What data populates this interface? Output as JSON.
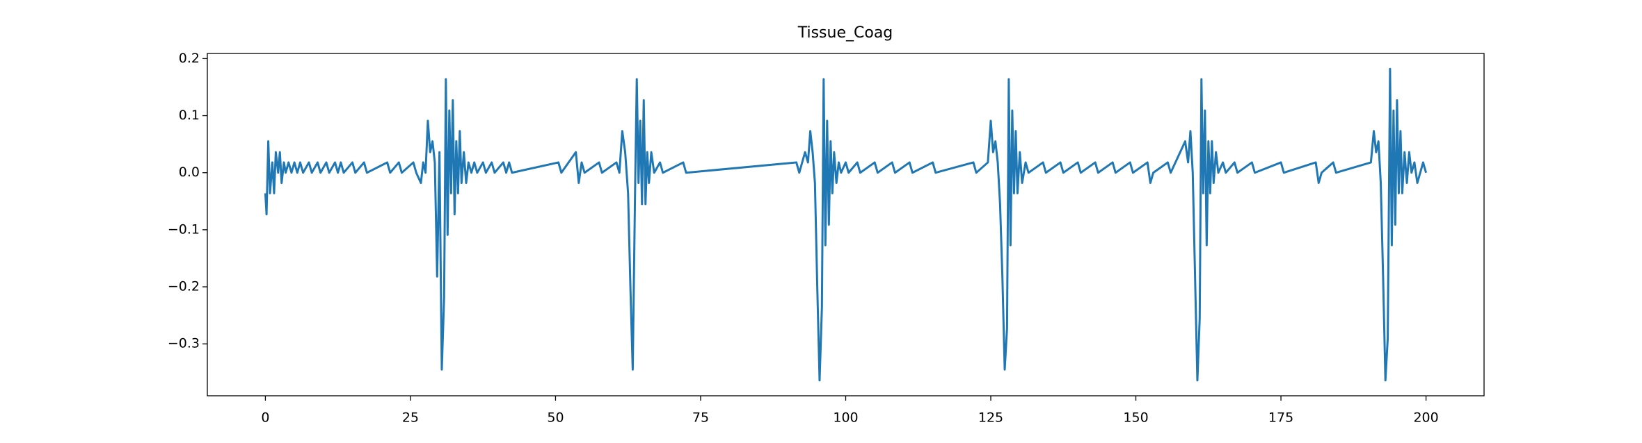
{
  "chart_data": {
    "type": "line",
    "title": "Tissue_Coag",
    "color": "#1f77b4",
    "grid": false,
    "xlim": [
      -10,
      210
    ],
    "ylim": [
      -0.391,
      0.209
    ],
    "xticks": [
      0,
      25,
      50,
      75,
      100,
      125,
      150,
      175,
      200
    ],
    "yticks": [
      {
        "value": -0.3,
        "label": "−0.3"
      },
      {
        "value": -0.2,
        "label": "−0.2"
      },
      {
        "value": -0.1,
        "label": "−0.1"
      },
      {
        "value": 0,
        "label": "0.0"
      },
      {
        "value": 0.1,
        "label": "0.1"
      },
      {
        "value": 0.2,
        "label": "0.2"
      }
    ],
    "x": [
      0,
      0.2,
      0.5,
      0.8,
      1.2,
      1.5,
      1.8,
      2.2,
      2.5,
      2.8,
      3.2,
      3.5,
      4,
      4.5,
      5,
      5.5,
      6,
      6.5,
      7.5,
      8,
      9,
      9.5,
      10.5,
      11,
      12,
      12.5,
      13,
      13.5,
      15,
      15.5,
      17,
      17.5,
      21,
      21.5,
      23,
      23.5,
      25.5,
      26,
      26.8,
      27.2,
      27.6,
      28,
      28.4,
      28.8,
      29.2,
      29.6,
      30,
      30.4,
      30.8,
      31.1,
      31.4,
      31.7,
      32,
      32.3,
      32.6,
      32.9,
      33.2,
      33.5,
      33.8,
      34.2,
      34.6,
      35,
      35.5,
      36,
      36.5,
      37.5,
      38,
      39,
      39.5,
      41,
      41.5,
      42,
      42.5,
      50.5,
      51,
      53.5,
      54,
      54.5,
      55,
      57.5,
      58,
      60.5,
      61,
      61.5,
      62,
      62.5,
      62.9,
      63.3,
      63.7,
      64,
      64.3,
      64.6,
      64.9,
      65.2,
      65.5,
      65.8,
      66.1,
      66.5,
      67,
      68,
      68.5,
      72,
      72.5,
      91.5,
      92,
      93,
      93.5,
      93.9,
      94.3,
      94.7,
      95.1,
      95.5,
      95.9,
      96.2,
      96.5,
      96.8,
      97.1,
      97.4,
      97.7,
      98,
      98.4,
      98.8,
      99.2,
      100,
      100.5,
      102,
      102.5,
      105,
      105.5,
      108,
      108.5,
      111,
      111.5,
      115,
      115.5,
      122,
      122.5,
      124.5,
      125,
      125.4,
      125.8,
      126.2,
      126.6,
      127,
      127.4,
      127.8,
      128.1,
      128.4,
      128.7,
      129,
      129.3,
      129.6,
      130,
      130.4,
      131,
      131.5,
      134,
      134.5,
      137,
      137.5,
      140,
      140.5,
      143,
      143.5,
      146,
      146.5,
      149,
      149.5,
      152,
      152.5,
      153,
      155.5,
      156,
      158.5,
      159,
      159.4,
      159.8,
      160.2,
      160.6,
      161,
      161.3,
      161.6,
      161.9,
      162.2,
      162.5,
      162.8,
      163.1,
      163.4,
      163.8,
      164.2,
      165,
      165.5,
      167,
      167.5,
      170,
      170.5,
      175,
      175.5,
      181,
      181.5,
      182,
      184,
      184.5,
      190.5,
      191,
      191.4,
      191.8,
      192.2,
      192.6,
      193,
      193.4,
      193.8,
      194.1,
      194.4,
      194.7,
      195,
      195.3,
      195.6,
      195.9,
      196.3,
      196.7,
      197.1,
      197.5,
      198,
      198.5,
      199,
      199.5,
      200
    ],
    "values": [
      -0.036,
      -0.073,
      0.055,
      -0.036,
      0.018,
      -0.036,
      0.036,
      0,
      0.036,
      -0.018,
      0.018,
      0,
      0.018,
      0,
      0.018,
      0,
      0.018,
      0,
      0.018,
      0,
      0.018,
      0,
      0.018,
      0,
      0.018,
      0,
      0.018,
      0,
      0.018,
      0,
      0.018,
      0,
      0.018,
      0,
      0.018,
      0,
      0.018,
      0,
      -0.018,
      0.018,
      0,
      0.091,
      0.036,
      0.055,
      0.018,
      -0.182,
      0.036,
      -0.345,
      -0.218,
      0.164,
      -0.109,
      0.109,
      -0.036,
      0.127,
      -0.073,
      0.055,
      -0.036,
      0.073,
      -0.018,
      0.036,
      -0.018,
      0.018,
      0,
      0.018,
      0,
      0.018,
      0,
      0.018,
      0,
      0.018,
      0,
      0.018,
      0,
      0.018,
      0,
      0.036,
      -0.018,
      0.018,
      0,
      0.018,
      0,
      0.018,
      0,
      0.073,
      0.036,
      -0.036,
      -0.2,
      -0.345,
      -0.036,
      0.164,
      -0.018,
      0.091,
      -0.055,
      0.127,
      -0.055,
      0.036,
      -0.018,
      0.036,
      0,
      0.018,
      0,
      0.018,
      0,
      0.018,
      0,
      0.036,
      0.018,
      0.073,
      0.036,
      -0.018,
      -0.2,
      -0.364,
      -0.236,
      0.164,
      -0.127,
      0.091,
      -0.091,
      0.055,
      -0.036,
      0.036,
      -0.018,
      0.018,
      0,
      0.018,
      0,
      0.018,
      0,
      0.018,
      0,
      0.018,
      0,
      0.018,
      0,
      0.018,
      0,
      0.018,
      0,
      0.018,
      0.091,
      0.036,
      0.055,
      0.018,
      -0.055,
      -0.182,
      -0.345,
      -0.273,
      0.164,
      -0.127,
      0.109,
      -0.036,
      0.073,
      -0.036,
      0.036,
      -0.018,
      0.018,
      0,
      0.018,
      0,
      0.018,
      0,
      0.018,
      0,
      0.018,
      0,
      0.018,
      0,
      0.018,
      0,
      0.018,
      -0.018,
      0,
      0.018,
      0,
      0.055,
      0.018,
      0.073,
      0,
      -0.182,
      -0.364,
      -0.255,
      0.164,
      -0.036,
      0.109,
      -0.127,
      0.055,
      -0.036,
      0.055,
      -0.018,
      0.036,
      0,
      0.018,
      0,
      0.018,
      0,
      0.018,
      0,
      0.018,
      0,
      0.018,
      -0.018,
      0,
      0.018,
      0,
      0.018,
      0.073,
      0.036,
      0.055,
      -0.018,
      -0.182,
      -0.364,
      -0.291,
      0.182,
      -0.127,
      0.109,
      -0.091,
      0.127,
      -0.036,
      0.073,
      -0.036,
      0.036,
      -0.018,
      0.036,
      0,
      0.018,
      -0.018,
      0,
      0.018,
      0
    ]
  }
}
